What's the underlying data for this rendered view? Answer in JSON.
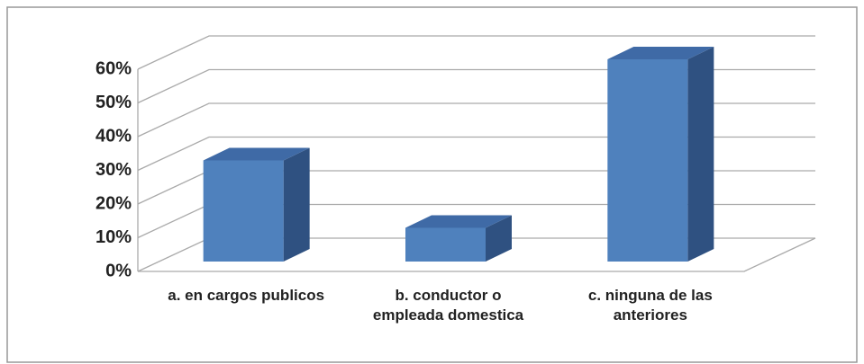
{
  "chart_data": {
    "type": "bar",
    "categories": [
      "a. en cargos publicos",
      "b. conductor o empleada domestica",
      "c. ninguna de las anteriores"
    ],
    "values": [
      30,
      10,
      60
    ],
    "color": "#4f81bd",
    "ylim": [
      0,
      60
    ],
    "yticks": [
      {
        "value": 0,
        "label": "0%"
      },
      {
        "value": 10,
        "label": "10%"
      },
      {
        "value": 20,
        "label": "20%"
      },
      {
        "value": 30,
        "label": "30%"
      },
      {
        "value": 40,
        "label": "40%"
      },
      {
        "value": 50,
        "label": "50%"
      },
      {
        "value": 60,
        "label": "60%"
      }
    ],
    "grid": true
  }
}
